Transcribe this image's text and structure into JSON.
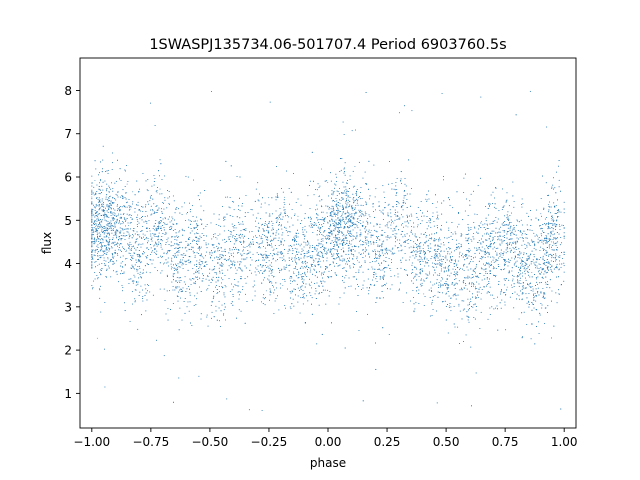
{
  "chart_data": {
    "type": "scatter",
    "title": "1SWASPJ135734.06-501707.4 Period 6903760.5s",
    "xlabel": "phase",
    "ylabel": "flux",
    "xlim": [
      -1.05,
      1.05
    ],
    "ylim": [
      0.2,
      8.75
    ],
    "xticks": [
      -1.0,
      -0.75,
      -0.5,
      -0.25,
      0.0,
      0.25,
      0.5,
      0.75,
      1.0
    ],
    "xtick_labels": [
      "−1.00",
      "−0.75",
      "−0.50",
      "−0.25",
      "0.00",
      "0.25",
      "0.50",
      "0.75",
      "1.00"
    ],
    "yticks": [
      1,
      2,
      3,
      4,
      5,
      6,
      7,
      8
    ],
    "ytick_labels": [
      "1",
      "2",
      "3",
      "4",
      "5",
      "6",
      "7",
      "8"
    ],
    "grid": false,
    "legend": "none",
    "series": [
      {
        "color": "#1f77b4",
        "phase_range": [
          -1.0,
          1.0
        ],
        "clusters": [
          {
            "phase": -0.98,
            "flux_mean": 4.7,
            "flux_spread": 0.6,
            "weight": 3
          },
          {
            "phase": -0.93,
            "flux_mean": 4.9,
            "flux_spread": 0.6,
            "weight": 3
          },
          {
            "phase": -0.87,
            "flux_mean": 4.8,
            "flux_spread": 0.55,
            "weight": 2
          },
          {
            "phase": -0.8,
            "flux_mean": 4.2,
            "flux_spread": 0.65,
            "weight": 2
          },
          {
            "phase": -0.72,
            "flux_mean": 4.9,
            "flux_spread": 0.6,
            "weight": 2
          },
          {
            "phase": -0.64,
            "flux_mean": 4.1,
            "flux_spread": 0.6,
            "weight": 2
          },
          {
            "phase": -0.56,
            "flux_mean": 4.3,
            "flux_spread": 0.6,
            "weight": 2
          },
          {
            "phase": -0.47,
            "flux_mean": 3.9,
            "flux_spread": 0.6,
            "weight": 2
          },
          {
            "phase": -0.38,
            "flux_mean": 4.3,
            "flux_spread": 0.65,
            "weight": 2
          },
          {
            "phase": -0.28,
            "flux_mean": 4.3,
            "flux_spread": 0.6,
            "weight": 2
          },
          {
            "phase": -0.2,
            "flux_mean": 4.5,
            "flux_spread": 0.65,
            "weight": 2
          },
          {
            "phase": -0.12,
            "flux_mean": 4.0,
            "flux_spread": 0.6,
            "weight": 2
          },
          {
            "phase": -0.04,
            "flux_mean": 4.4,
            "flux_spread": 0.6,
            "weight": 2
          },
          {
            "phase": 0.03,
            "flux_mean": 4.8,
            "flux_spread": 0.6,
            "weight": 3
          },
          {
            "phase": 0.08,
            "flux_mean": 5.0,
            "flux_spread": 0.6,
            "weight": 3
          },
          {
            "phase": 0.15,
            "flux_mean": 4.7,
            "flux_spread": 0.6,
            "weight": 2
          },
          {
            "phase": 0.22,
            "flux_mean": 4.2,
            "flux_spread": 0.6,
            "weight": 2
          },
          {
            "phase": 0.3,
            "flux_mean": 4.9,
            "flux_spread": 0.6,
            "weight": 2
          },
          {
            "phase": 0.38,
            "flux_mean": 4.2,
            "flux_spread": 0.6,
            "weight": 2
          },
          {
            "phase": 0.45,
            "flux_mean": 4.3,
            "flux_spread": 0.65,
            "weight": 2
          },
          {
            "phase": 0.53,
            "flux_mean": 3.8,
            "flux_spread": 0.6,
            "weight": 2
          },
          {
            "phase": 0.61,
            "flux_mean": 4.0,
            "flux_spread": 0.65,
            "weight": 2
          },
          {
            "phase": 0.68,
            "flux_mean": 4.3,
            "flux_spread": 0.6,
            "weight": 2
          },
          {
            "phase": 0.75,
            "flux_mean": 4.5,
            "flux_spread": 0.6,
            "weight": 2
          },
          {
            "phase": 0.82,
            "flux_mean": 4.0,
            "flux_spread": 0.6,
            "weight": 2
          },
          {
            "phase": 0.88,
            "flux_mean": 3.8,
            "flux_spread": 0.6,
            "weight": 2
          },
          {
            "phase": 0.95,
            "flux_mean": 4.6,
            "flux_spread": 0.6,
            "weight": 3
          }
        ],
        "point_count": 12000,
        "outlier_fraction": 0.012,
        "outlier_flux_range": [
          0.6,
          8.5
        ]
      }
    ]
  }
}
